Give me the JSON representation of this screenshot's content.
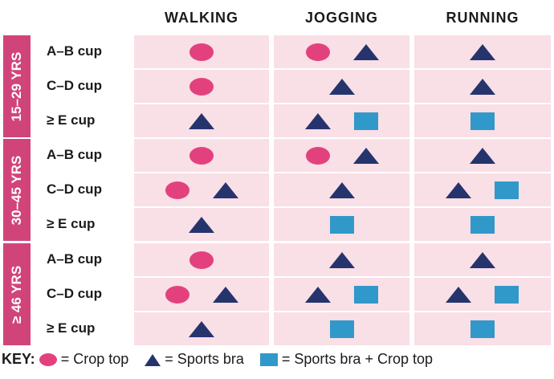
{
  "columns": [
    "WALKING",
    "JOGGING",
    "RUNNING"
  ],
  "groups": [
    {
      "age": "15–29 YRS",
      "rows": [
        {
          "cup": "A–B cup",
          "walking": [
            "circle"
          ],
          "jogging": [
            "circle",
            "triangle"
          ],
          "running": [
            "triangle"
          ]
        },
        {
          "cup": "C–D cup",
          "walking": [
            "circle"
          ],
          "jogging": [
            "triangle"
          ],
          "running": [
            "triangle"
          ]
        },
        {
          "cup": "≥ E cup",
          "walking": [
            "triangle"
          ],
          "jogging": [
            "triangle",
            "square"
          ],
          "running": [
            "square"
          ]
        }
      ]
    },
    {
      "age": "30–45 YRS",
      "rows": [
        {
          "cup": "A–B cup",
          "walking": [
            "circle"
          ],
          "jogging": [
            "circle",
            "triangle"
          ],
          "running": [
            "triangle"
          ]
        },
        {
          "cup": "C–D cup",
          "walking": [
            "circle",
            "triangle"
          ],
          "jogging": [
            "triangle"
          ],
          "running": [
            "triangle",
            "square"
          ]
        },
        {
          "cup": "≥ E cup",
          "walking": [
            "triangle"
          ],
          "jogging": [
            "square"
          ],
          "running": [
            "square"
          ]
        }
      ]
    },
    {
      "age": "≥ 46 YRS",
      "rows": [
        {
          "cup": "A–B cup",
          "walking": [
            "circle"
          ],
          "jogging": [
            "triangle"
          ],
          "running": [
            "triangle"
          ]
        },
        {
          "cup": "C–D cup",
          "walking": [
            "circle",
            "triangle"
          ],
          "jogging": [
            "triangle",
            "square"
          ],
          "running": [
            "triangle",
            "square"
          ]
        },
        {
          "cup": "≥ E cup",
          "walking": [
            "triangle"
          ],
          "jogging": [
            "square"
          ],
          "running": [
            "square"
          ]
        }
      ]
    }
  ],
  "key": {
    "label": "KEY:",
    "circle": "= Crop top",
    "triangle": "= Sports bra",
    "square": "= Sports bra + Crop top"
  },
  "colors": {
    "cell_bg": "#f9dfe6",
    "age_bg": "#d1447a",
    "circle": "#e3417d",
    "triangle": "#26346e",
    "square": "#3198ca"
  }
}
